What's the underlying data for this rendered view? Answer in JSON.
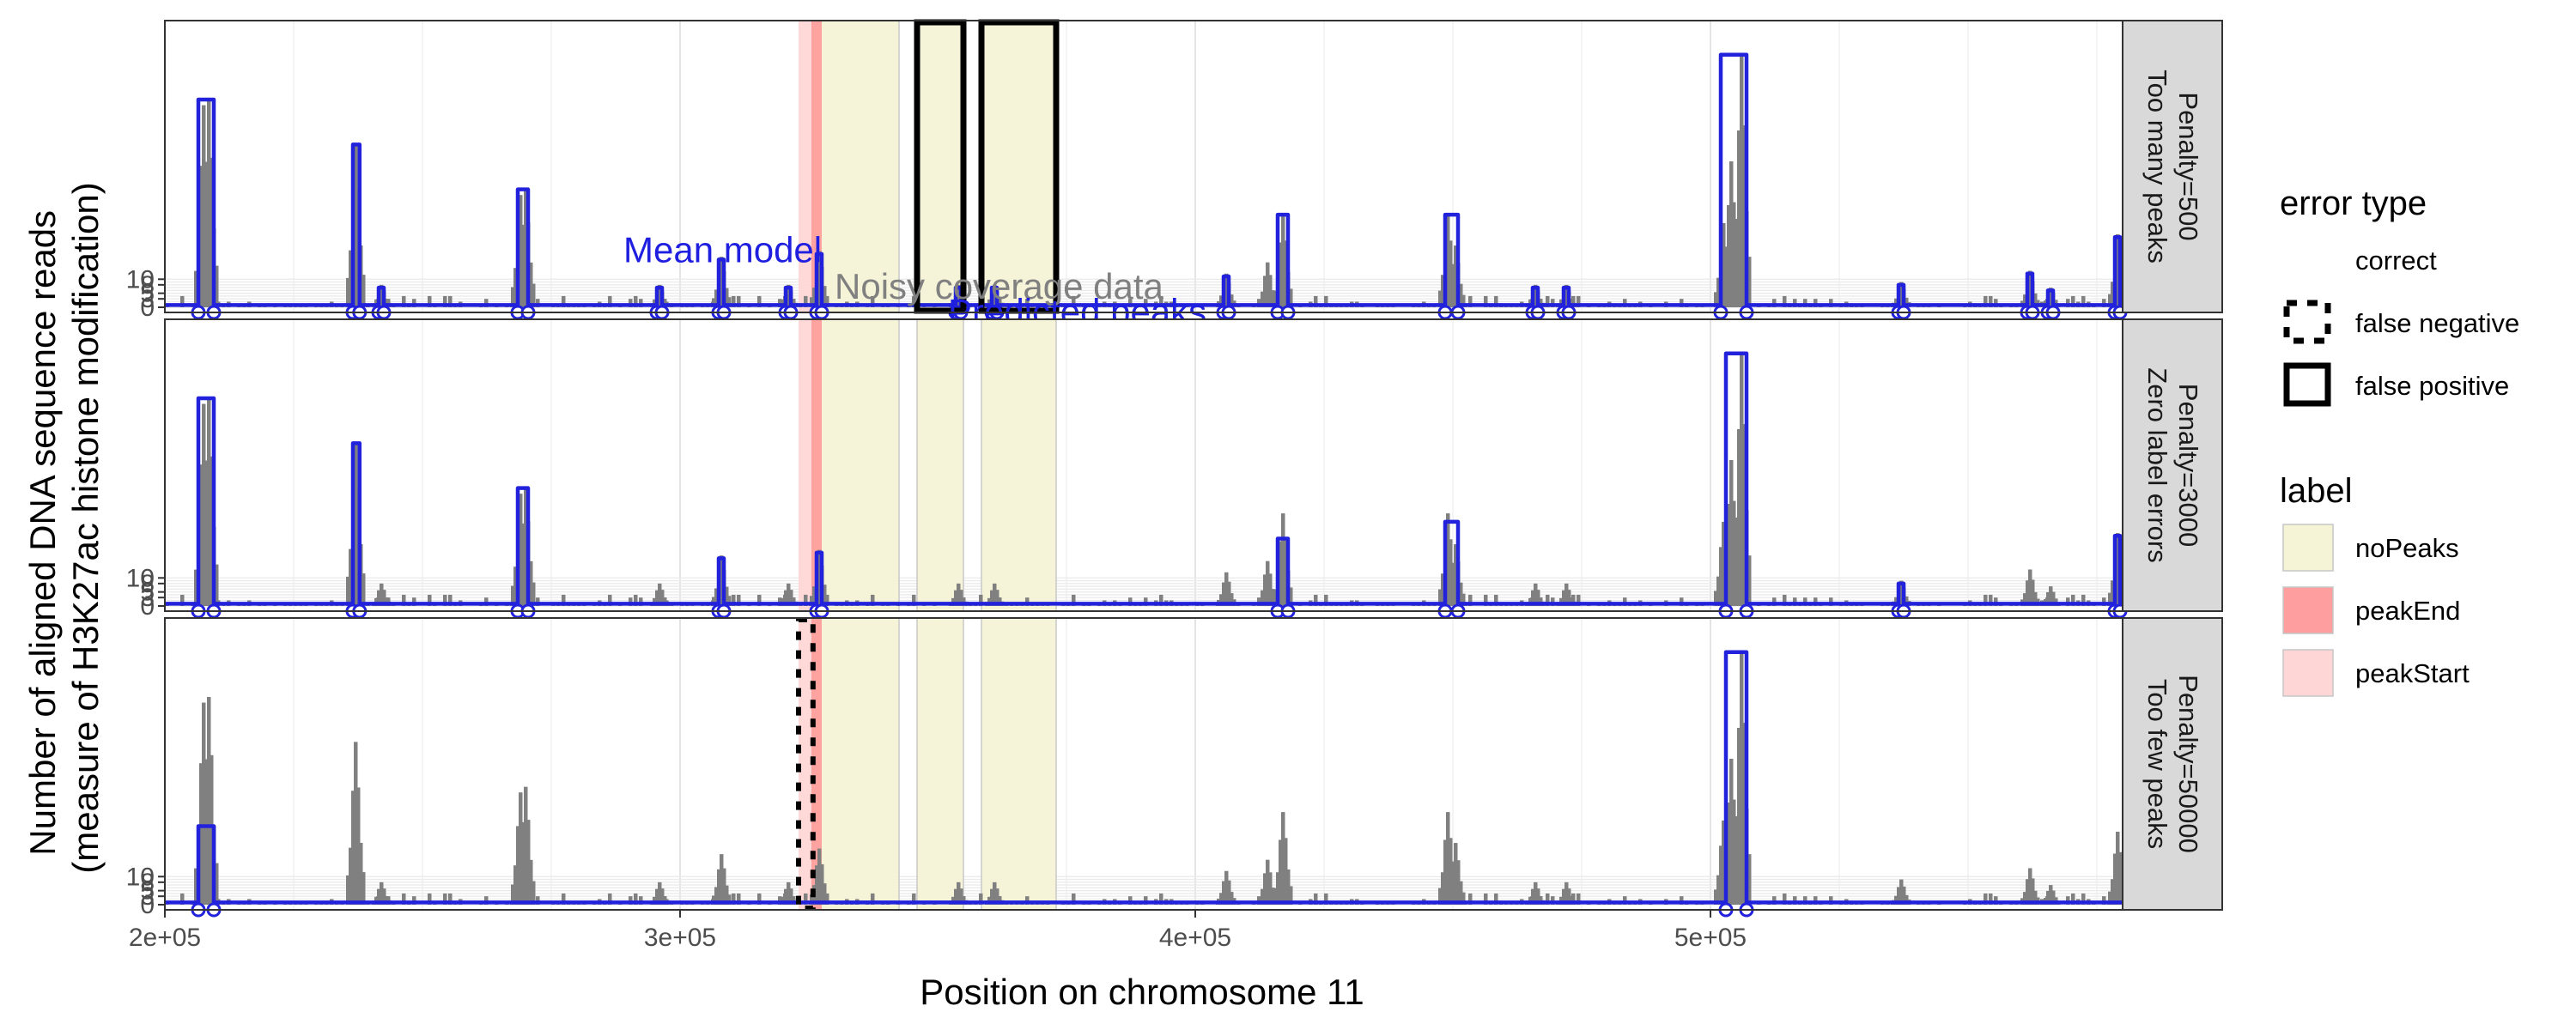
{
  "chart_data": {
    "type": "line",
    "xlabel": "Position on chromosome 11",
    "ylabel_lines": [
      "Number of aligned DNA sequence reads",
      "(measure of H3K27ac histone modification)"
    ],
    "xlim": [
      200000,
      580000
    ],
    "ylim": [
      0,
      100
    ],
    "x_ticks": [
      {
        "value": 200000,
        "label": "2e+05"
      },
      {
        "value": 300000,
        "label": "3e+05"
      },
      {
        "value": 400000,
        "label": "4e+05"
      },
      {
        "value": 500000,
        "label": "5e+05"
      }
    ],
    "y_ticks": [
      {
        "value": 0,
        "label": "0"
      },
      {
        "value": 3,
        "label": "3"
      },
      {
        "value": 5,
        "label": "5"
      },
      {
        "value": 8,
        "label": "8"
      },
      {
        "value": 10,
        "label": "10"
      }
    ],
    "coverage_color": "#808080",
    "model_color": "#2222dd",
    "base_peaks": [
      {
        "x": 207500,
        "h": 72
      },
      {
        "x": 208500,
        "h": 74
      },
      {
        "x": 237000,
        "h": 58
      },
      {
        "x": 242000,
        "h": 8
      },
      {
        "x": 269000,
        "h": 40
      },
      {
        "x": 270000,
        "h": 42
      },
      {
        "x": 296000,
        "h": 8
      },
      {
        "x": 308000,
        "h": 18
      },
      {
        "x": 321000,
        "h": 8
      },
      {
        "x": 327000,
        "h": 20
      },
      {
        "x": 354000,
        "h": 8
      },
      {
        "x": 361000,
        "h": 8
      },
      {
        "x": 406000,
        "h": 12
      },
      {
        "x": 414000,
        "h": 16
      },
      {
        "x": 417000,
        "h": 33
      },
      {
        "x": 449000,
        "h": 33
      },
      {
        "x": 450500,
        "h": 22
      },
      {
        "x": 466000,
        "h": 8
      },
      {
        "x": 472000,
        "h": 8
      },
      {
        "x": 502500,
        "h": 30
      },
      {
        "x": 504000,
        "h": 52
      },
      {
        "x": 506000,
        "h": 90
      },
      {
        "x": 537000,
        "h": 9
      },
      {
        "x": 562000,
        "h": 13
      },
      {
        "x": 566000,
        "h": 7
      },
      {
        "x": 579000,
        "h": 26
      }
    ],
    "label_regions": [
      {
        "label": "noPeaks",
        "start": 325500,
        "end": 342500
      },
      {
        "label": "noPeaks",
        "start": 346000,
        "end": 355000
      },
      {
        "label": "noPeaks",
        "start": 358500,
        "end": 373000
      },
      {
        "label": "peakStart",
        "start": 323000,
        "end": 325500
      },
      {
        "label": "peakEnd",
        "start": 325500,
        "end": 327500
      }
    ],
    "label_colors": {
      "noPeaks": "#f6f4d6",
      "peakEnd": "#ff9e9e",
      "peakStart": "#ffd6d6"
    },
    "panels": [
      {
        "strip": [
          "Penalty=500",
          "Too many peaks"
        ],
        "model_peaks": [
          {
            "start": 206500,
            "end": 209500,
            "h": 74
          },
          {
            "start": 236500,
            "end": 237800,
            "h": 58
          },
          {
            "start": 241500,
            "end": 242500,
            "h": 7
          },
          {
            "start": 268500,
            "end": 270500,
            "h": 42
          },
          {
            "start": 295500,
            "end": 296500,
            "h": 7
          },
          {
            "start": 307500,
            "end": 308500,
            "h": 17
          },
          {
            "start": 320500,
            "end": 321500,
            "h": 7
          },
          {
            "start": 326500,
            "end": 327500,
            "h": 19
          },
          {
            "start": 353500,
            "end": 354500,
            "h": 7
          },
          {
            "start": 360500,
            "end": 361500,
            "h": 7
          },
          {
            "start": 405500,
            "end": 406500,
            "h": 11
          },
          {
            "start": 416000,
            "end": 418000,
            "h": 33
          },
          {
            "start": 448500,
            "end": 451000,
            "h": 33
          },
          {
            "start": 465500,
            "end": 466500,
            "h": 7
          },
          {
            "start": 471500,
            "end": 472500,
            "h": 7
          },
          {
            "start": 502000,
            "end": 507000,
            "h": 90
          },
          {
            "start": 536500,
            "end": 537500,
            "h": 8
          },
          {
            "start": 561500,
            "end": 562500,
            "h": 12
          },
          {
            "start": 565500,
            "end": 566500,
            "h": 6
          },
          {
            "start": 578500,
            "end": 579500,
            "h": 25
          }
        ],
        "errors": [
          {
            "type": "false positive",
            "start": 346000,
            "end": 355000
          },
          {
            "type": "false positive",
            "start": 358500,
            "end": 373000
          }
        ],
        "annotations": [
          {
            "text": "Mean model",
            "x": 289000,
            "y": 16,
            "color": "#1f1fe0"
          },
          {
            "text": "Noisy coverage data",
            "x": 330000,
            "y": 3,
            "color": "#808080"
          },
          {
            "text": "Predicted peaks",
            "x": 352000,
            "y": -6,
            "color": "#1f1fe0"
          }
        ]
      },
      {
        "strip": [
          "Penalty=3000",
          "Zero label errors"
        ],
        "model_peaks": [
          {
            "start": 206500,
            "end": 209500,
            "h": 74
          },
          {
            "start": 236500,
            "end": 237800,
            "h": 58
          },
          {
            "start": 268500,
            "end": 270500,
            "h": 42
          },
          {
            "start": 307500,
            "end": 308500,
            "h": 17
          },
          {
            "start": 326500,
            "end": 327500,
            "h": 19
          },
          {
            "start": 416000,
            "end": 418000,
            "h": 24
          },
          {
            "start": 448500,
            "end": 451000,
            "h": 30
          },
          {
            "start": 503000,
            "end": 507000,
            "h": 90
          },
          {
            "start": 536500,
            "end": 537500,
            "h": 8
          },
          {
            "start": 578500,
            "end": 579500,
            "h": 25
          }
        ],
        "errors": [],
        "annotations": []
      },
      {
        "strip": [
          "Penalty=50000",
          "Too few peaks"
        ],
        "model_peaks": [
          {
            "start": 206500,
            "end": 209500,
            "h": 28
          },
          {
            "start": 503000,
            "end": 507000,
            "h": 90
          }
        ],
        "errors": [
          {
            "type": "false negative",
            "start": 323000,
            "end": 325800
          }
        ],
        "annotations": []
      }
    ],
    "legend": [
      {
        "title": "error type",
        "entries": [
          {
            "label": "correct",
            "key": "none"
          },
          {
            "label": "false negative",
            "key": "dashed"
          },
          {
            "label": "false positive",
            "key": "solid"
          }
        ]
      },
      {
        "title": "label",
        "entries": [
          {
            "label": "noPeaks",
            "key": "fill"
          },
          {
            "label": "peakEnd",
            "key": "fill"
          },
          {
            "label": "peakStart",
            "key": "fill"
          }
        ]
      }
    ],
    "legend_position": "right",
    "grid": true
  }
}
